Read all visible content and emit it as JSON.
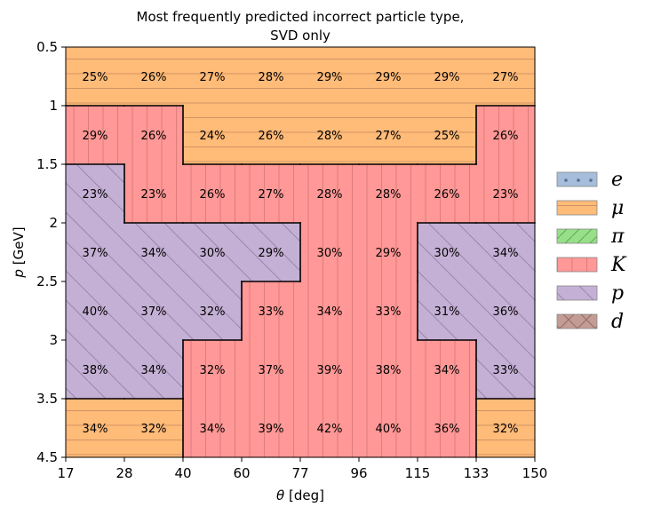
{
  "chart_data": {
    "type": "heatmap",
    "title_lines": [
      "Most frequently predicted incorrect particle type,",
      "SVD only"
    ],
    "xlabel_symbol": "θ",
    "xlabel_unit": " [deg]",
    "ylabel_symbol": "p",
    "ylabel_unit": " [GeV]",
    "x_edges": [
      17,
      28,
      40,
      60,
      77,
      96,
      115,
      133,
      150
    ],
    "x_tick_labels": [
      "17",
      "28",
      "40",
      "60",
      "77",
      "96",
      "115",
      "133",
      "150"
    ],
    "y_edges": [
      0.5,
      1,
      1.5,
      2,
      2.5,
      3,
      3.5,
      4.5
    ],
    "y_tick_labels": [
      "0.5",
      "1",
      "1.5",
      "2",
      "2.5",
      "3",
      "3.5",
      "4.5"
    ],
    "legend": [
      {
        "key": "e",
        "label": "e"
      },
      {
        "key": "mu",
        "label": "μ"
      },
      {
        "key": "pi",
        "label": "π"
      },
      {
        "key": "K",
        "label": "K"
      },
      {
        "key": "p",
        "label": "p"
      },
      {
        "key": "d",
        "label": "d"
      }
    ],
    "legend_placement": "right",
    "colors": {
      "e": "#a6bddb",
      "mu": "#ffbb78",
      "pi": "#98df8a",
      "K": "#ff9896",
      "p": "#c5b0d5",
      "d": "#c49c94"
    },
    "cells": [
      [
        {
          "type": "mu",
          "label": "25%"
        },
        {
          "type": "mu",
          "label": "26%"
        },
        {
          "type": "mu",
          "label": "27%"
        },
        {
          "type": "mu",
          "label": "28%"
        },
        {
          "type": "mu",
          "label": "29%"
        },
        {
          "type": "mu",
          "label": "29%"
        },
        {
          "type": "mu",
          "label": "29%"
        },
        {
          "type": "mu",
          "label": "27%"
        }
      ],
      [
        {
          "type": "K",
          "label": "29%"
        },
        {
          "type": "K",
          "label": "26%"
        },
        {
          "type": "mu",
          "label": "24%"
        },
        {
          "type": "mu",
          "label": "26%"
        },
        {
          "type": "mu",
          "label": "28%"
        },
        {
          "type": "mu",
          "label": "27%"
        },
        {
          "type": "mu",
          "label": "25%"
        },
        {
          "type": "K",
          "label": "26%"
        }
      ],
      [
        {
          "type": "p",
          "label": "23%"
        },
        {
          "type": "K",
          "label": "23%"
        },
        {
          "type": "K",
          "label": "26%"
        },
        {
          "type": "K",
          "label": "27%"
        },
        {
          "type": "K",
          "label": "28%"
        },
        {
          "type": "K",
          "label": "28%"
        },
        {
          "type": "K",
          "label": "26%"
        },
        {
          "type": "K",
          "label": "23%"
        }
      ],
      [
        {
          "type": "p",
          "label": "37%"
        },
        {
          "type": "p",
          "label": "34%"
        },
        {
          "type": "p",
          "label": "30%"
        },
        {
          "type": "p",
          "label": "29%"
        },
        {
          "type": "K",
          "label": "30%"
        },
        {
          "type": "K",
          "label": "29%"
        },
        {
          "type": "p",
          "label": "30%"
        },
        {
          "type": "p",
          "label": "34%"
        }
      ],
      [
        {
          "type": "p",
          "label": "40%"
        },
        {
          "type": "p",
          "label": "37%"
        },
        {
          "type": "p",
          "label": "32%"
        },
        {
          "type": "K",
          "label": "33%"
        },
        {
          "type": "K",
          "label": "34%"
        },
        {
          "type": "K",
          "label": "33%"
        },
        {
          "type": "p",
          "label": "31%"
        },
        {
          "type": "p",
          "label": "36%"
        }
      ],
      [
        {
          "type": "p",
          "label": "38%"
        },
        {
          "type": "p",
          "label": "34%"
        },
        {
          "type": "K",
          "label": "32%"
        },
        {
          "type": "K",
          "label": "37%"
        },
        {
          "type": "K",
          "label": "39%"
        },
        {
          "type": "K",
          "label": "38%"
        },
        {
          "type": "K",
          "label": "34%"
        },
        {
          "type": "p",
          "label": "33%"
        }
      ],
      [
        {
          "type": "mu",
          "label": "34%"
        },
        {
          "type": "mu",
          "label": "32%"
        },
        {
          "type": "K",
          "label": "34%"
        },
        {
          "type": "K",
          "label": "39%"
        },
        {
          "type": "K",
          "label": "42%"
        },
        {
          "type": "K",
          "label": "40%"
        },
        {
          "type": "K",
          "label": "36%"
        },
        {
          "type": "mu",
          "label": "32%"
        }
      ]
    ]
  }
}
